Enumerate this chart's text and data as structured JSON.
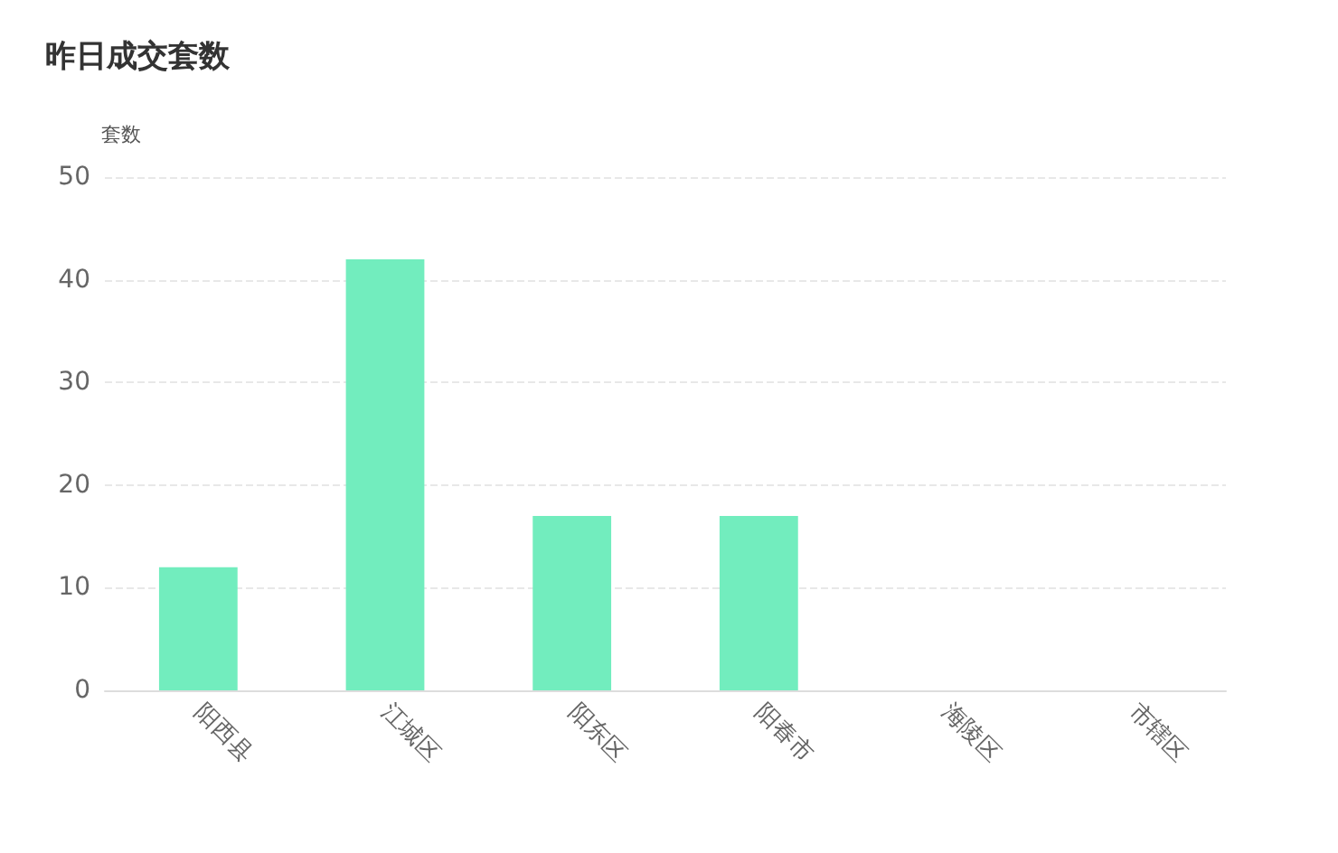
{
  "chart_data": {
    "type": "bar",
    "title": "昨日成交套数",
    "ylabel": "套数",
    "categories": [
      "阳西县",
      "江城区",
      "阳东区",
      "阳春市",
      "海陵区",
      "市辖区"
    ],
    "values": [
      12,
      42,
      17,
      17,
      0,
      0
    ],
    "color": "#72edbe",
    "ylim": [
      0,
      50
    ],
    "yticks": [
      0,
      10,
      20,
      30,
      40,
      50
    ],
    "grid": "y",
    "line_style": "dashed"
  }
}
